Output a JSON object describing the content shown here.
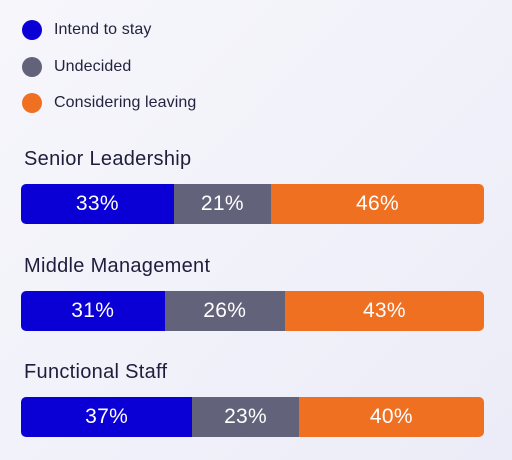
{
  "chart_data": {
    "type": "bar",
    "orientation": "horizontal",
    "stacked": true,
    "legend_placement": "top-left",
    "colors": {
      "Intend to stay": "#0a00d6",
      "Undecided": "#62627a",
      "Considering leaving": "#f07022"
    },
    "legend": [
      "Intend to stay",
      "Undecided",
      "Considering leaving"
    ],
    "categories": [
      "Senior Leadership",
      "Middle Management",
      "Functional Staff"
    ],
    "series": [
      {
        "name": "Intend to stay",
        "values": [
          33,
          31,
          37
        ],
        "labels": [
          "33%",
          "31%",
          "37%"
        ]
      },
      {
        "name": "Undecided",
        "values": [
          21,
          26,
          23
        ],
        "labels": [
          "21%",
          "26%",
          "23%"
        ]
      },
      {
        "name": "Considering leaving",
        "values": [
          46,
          43,
          40
        ],
        "labels": [
          "46%",
          "43%",
          "40%"
        ]
      }
    ],
    "unit": "%",
    "xlim": [
      0,
      100
    ],
    "grid": false
  }
}
